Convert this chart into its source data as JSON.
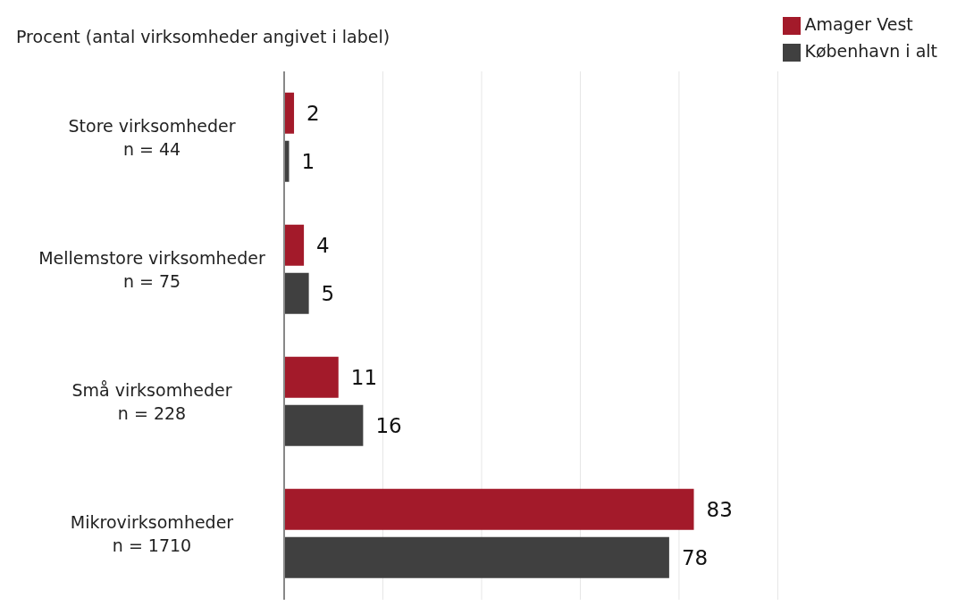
{
  "chart_data": {
    "type": "bar",
    "orientation": "horizontal",
    "xlabel": "Procent (antal virksomheder angivet i label)",
    "categories": [
      "Store virksomheder\nn = 44",
      "Mellemstore virksomheder\nn = 75",
      "Små virksomheder\nn = 228",
      "Mikrovirksomheder\nn = 1710"
    ],
    "series": [
      {
        "name": "Amager Vest",
        "color": "#a31a2a",
        "values": [
          2,
          4,
          11,
          83
        ]
      },
      {
        "name": "København i alt",
        "color": "#404040",
        "values": [
          1,
          5,
          16,
          78
        ]
      }
    ],
    "xlim": [
      0,
      100
    ],
    "xticks": [
      {
        "value": 0,
        "label": null
      },
      {
        "value": 20,
        "label": null
      },
      {
        "value": 40,
        "label": null
      },
      {
        "value": 60,
        "label": null
      },
      {
        "value": 80,
        "label": null
      },
      {
        "value": 100,
        "label": null
      }
    ],
    "grid": "x",
    "legend": "top right",
    "data_labels": true
  }
}
